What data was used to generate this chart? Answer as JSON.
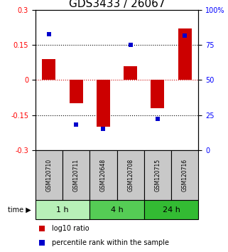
{
  "title": "GDS3433 / 26067",
  "samples": [
    "GSM120710",
    "GSM120711",
    "GSM120648",
    "GSM120708",
    "GSM120715",
    "GSM120716"
  ],
  "log10_ratio": [
    0.09,
    -0.1,
    -0.2,
    0.06,
    -0.12,
    0.22
  ],
  "percentile_rank": [
    83,
    18,
    15,
    75,
    22,
    82
  ],
  "ylim_left": [
    -0.3,
    0.3
  ],
  "ylim_right": [
    0,
    100
  ],
  "yticks_left": [
    -0.3,
    -0.15,
    0,
    0.15,
    0.3
  ],
  "yticks_right": [
    0,
    25,
    50,
    75,
    100
  ],
  "ytick_labels_left": [
    "-0.3",
    "-0.15",
    "0",
    "0.15",
    "0.3"
  ],
  "ytick_labels_right": [
    "0",
    "25",
    "50",
    "75",
    "100%"
  ],
  "groups": [
    {
      "label": "1 h",
      "samples": [
        0,
        1
      ],
      "color": "#b8f0b8"
    },
    {
      "label": "4 h",
      "samples": [
        2,
        3
      ],
      "color": "#55cc55"
    },
    {
      "label": "24 h",
      "samples": [
        4,
        5
      ],
      "color": "#33bb33"
    }
  ],
  "bar_color": "#cc0000",
  "dot_color": "#0000cc",
  "bar_width": 0.5,
  "dot_size": 20,
  "dotted_line_color": "#000000",
  "zero_line_color": "#cc0000",
  "sample_box_color": "#c8c8c8",
  "legend_red_label": "log10 ratio",
  "legend_blue_label": "percentile rank within the sample",
  "background_color": "#ffffff",
  "title_fontsize": 11,
  "tick_fontsize": 7,
  "sample_fontsize": 5.5,
  "group_fontsize": 8,
  "legend_fontsize": 7
}
